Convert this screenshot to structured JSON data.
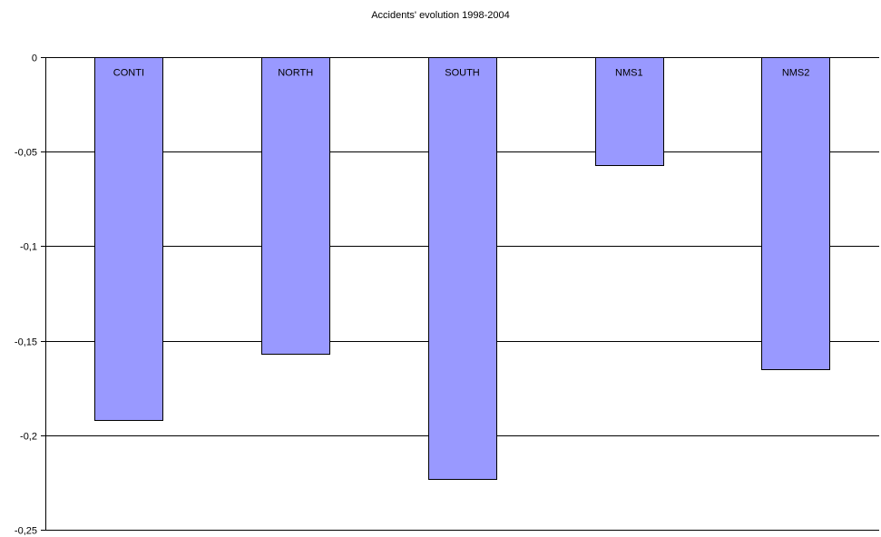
{
  "chart_data": {
    "type": "bar",
    "title": "Accidents' evolution 1998-2004",
    "categories": [
      "CONTI",
      "NORTH",
      "SOUTH",
      "NMS1",
      "NMS2"
    ],
    "values": [
      -0.192,
      -0.157,
      -0.223,
      -0.057,
      -0.165
    ],
    "ylim": [
      -0.25,
      0
    ],
    "yticks": [
      0,
      -0.05,
      -0.1,
      -0.15,
      -0.2,
      -0.25
    ],
    "ytick_labels": [
      "0",
      "-0,05",
      "-0,1",
      "-0,15",
      "-0,2",
      "-0,25"
    ],
    "grid": true,
    "category_labels_position": "inside-top-of-bar",
    "bar_color": "#9999ff",
    "bar_edge_color": "#000000",
    "xlabel": "",
    "ylabel": ""
  }
}
